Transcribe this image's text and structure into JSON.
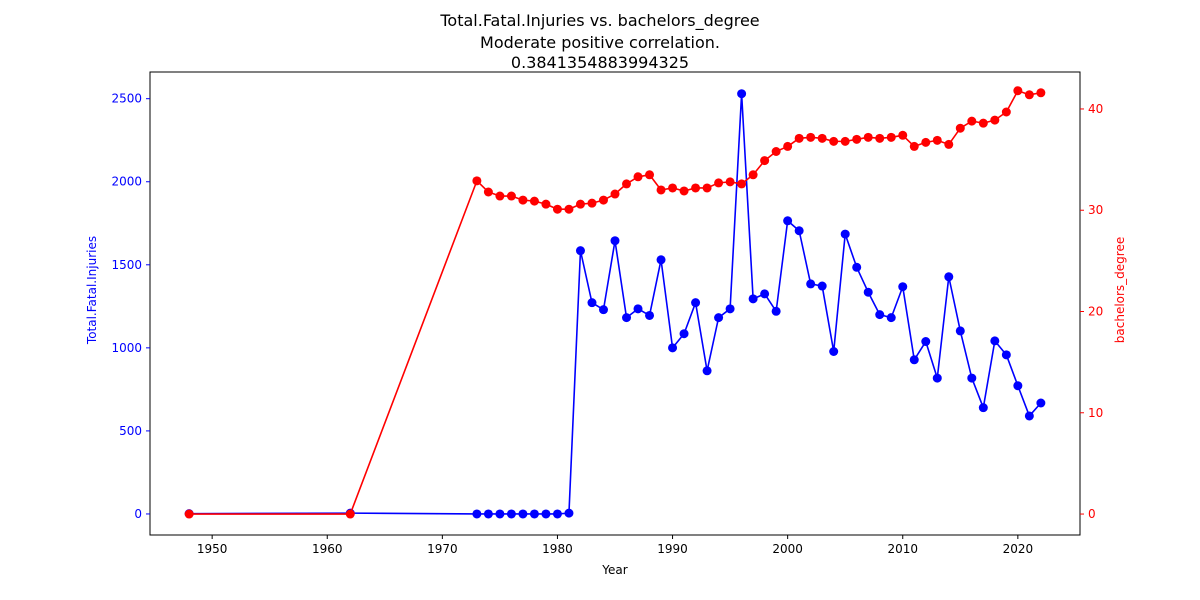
{
  "chart_data": {
    "type": "line",
    "title_lines": [
      "Total.Fatal.Injuries vs. bachelors_degree",
      "Moderate positive correlation.",
      "0.3841354883994325"
    ],
    "xlabel": "Year",
    "ylabel_left": "Total.Fatal.Injuries",
    "ylabel_right": "bachelors_degree",
    "xlim": [
      1944.6,
      2025.4
    ],
    "ylim_left": [
      -126.7,
      2660.7
    ],
    "ylim_right": [
      -2.07,
      43.65
    ],
    "x_ticks": [
      1950,
      1960,
      1970,
      1980,
      1990,
      2000,
      2010,
      2020
    ],
    "y_ticks_left": [
      0,
      500,
      1000,
      1500,
      2000,
      2500
    ],
    "y_ticks_right": [
      0,
      10,
      20,
      30,
      40
    ],
    "grid": false,
    "colors": {
      "left": "#0000ff",
      "right": "#ff0000",
      "axis": "#000000"
    },
    "series": [
      {
        "name": "Total.Fatal.Injuries",
        "axis": "left",
        "color": "#0000ff",
        "points": [
          [
            1948,
            2
          ],
          [
            1962,
            5
          ],
          [
            1973,
            0
          ],
          [
            1974,
            0
          ],
          [
            1975,
            0
          ],
          [
            1976,
            0
          ],
          [
            1977,
            0
          ],
          [
            1978,
            0
          ],
          [
            1979,
            0
          ],
          [
            1980,
            0
          ],
          [
            1981,
            5
          ],
          [
            1982,
            1585
          ],
          [
            1983,
            1272
          ],
          [
            1984,
            1230
          ],
          [
            1985,
            1645
          ],
          [
            1986,
            1182
          ],
          [
            1987,
            1235
          ],
          [
            1988,
            1195
          ],
          [
            1989,
            1530
          ],
          [
            1990,
            1000
          ],
          [
            1991,
            1085
          ],
          [
            1992,
            1272
          ],
          [
            1993,
            862
          ],
          [
            1994,
            1182
          ],
          [
            1995,
            1235
          ],
          [
            1996,
            2530
          ],
          [
            1997,
            1295
          ],
          [
            1998,
            1325
          ],
          [
            1999,
            1220
          ],
          [
            2000,
            1765
          ],
          [
            2001,
            1705
          ],
          [
            2002,
            1385
          ],
          [
            2003,
            1372
          ],
          [
            2004,
            978
          ],
          [
            2005,
            1685
          ],
          [
            2006,
            1485
          ],
          [
            2007,
            1335
          ],
          [
            2008,
            1200
          ],
          [
            2009,
            1182
          ],
          [
            2010,
            1368
          ],
          [
            2011,
            928
          ],
          [
            2012,
            1038
          ],
          [
            2013,
            818
          ],
          [
            2014,
            1428
          ],
          [
            2015,
            1102
          ],
          [
            2016,
            818
          ],
          [
            2017,
            640
          ],
          [
            2018,
            1042
          ],
          [
            2019,
            958
          ],
          [
            2020,
            772
          ],
          [
            2021,
            590
          ],
          [
            2022,
            668
          ]
        ]
      },
      {
        "name": "bachelors_degree",
        "axis": "right",
        "color": "#ff0000",
        "points": [
          [
            1948,
            0
          ],
          [
            1962,
            0
          ],
          [
            1973,
            32.9
          ],
          [
            1974,
            31.8
          ],
          [
            1975,
            31.4
          ],
          [
            1976,
            31.4
          ],
          [
            1977,
            31.0
          ],
          [
            1978,
            30.9
          ],
          [
            1979,
            30.6
          ],
          [
            1980,
            30.1
          ],
          [
            1981,
            30.1
          ],
          [
            1982,
            30.6
          ],
          [
            1983,
            30.7
          ],
          [
            1984,
            31.0
          ],
          [
            1985,
            31.6
          ],
          [
            1986,
            32.6
          ],
          [
            1987,
            33.3
          ],
          [
            1988,
            33.5
          ],
          [
            1989,
            32.0
          ],
          [
            1990,
            32.2
          ],
          [
            1991,
            31.9
          ],
          [
            1992,
            32.2
          ],
          [
            1993,
            32.2
          ],
          [
            1994,
            32.7
          ],
          [
            1995,
            32.8
          ],
          [
            1996,
            32.6
          ],
          [
            1997,
            33.5
          ],
          [
            1998,
            34.9
          ],
          [
            1999,
            35.8
          ],
          [
            2000,
            36.3
          ],
          [
            2001,
            37.1
          ],
          [
            2002,
            37.2
          ],
          [
            2003,
            37.1
          ],
          [
            2004,
            36.8
          ],
          [
            2005,
            36.8
          ],
          [
            2006,
            37.0
          ],
          [
            2007,
            37.2
          ],
          [
            2008,
            37.1
          ],
          [
            2009,
            37.2
          ],
          [
            2010,
            37.4
          ],
          [
            2011,
            36.3
          ],
          [
            2012,
            36.7
          ],
          [
            2013,
            36.9
          ],
          [
            2014,
            36.5
          ],
          [
            2015,
            38.1
          ],
          [
            2016,
            38.8
          ],
          [
            2017,
            38.6
          ],
          [
            2018,
            38.9
          ],
          [
            2019,
            39.7
          ],
          [
            2020,
            41.8
          ],
          [
            2021,
            41.4
          ],
          [
            2022,
            41.6
          ]
        ]
      }
    ]
  }
}
